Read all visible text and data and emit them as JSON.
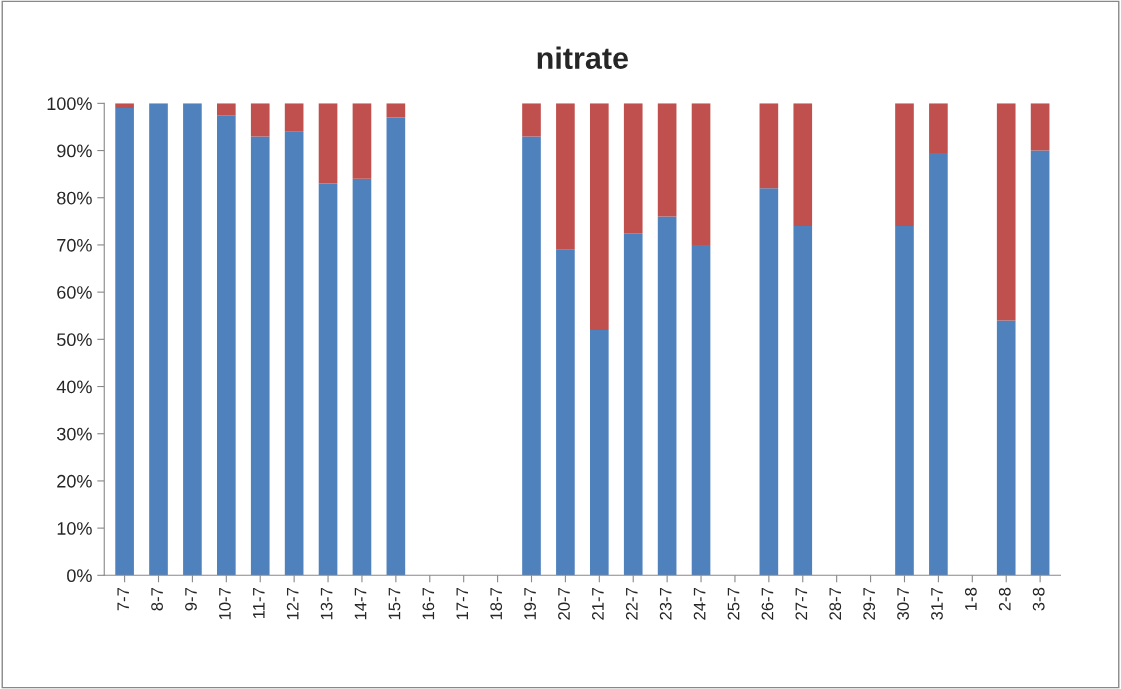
{
  "chart_data": {
    "type": "bar",
    "title": "nitrate",
    "stacked": true,
    "categories": [
      "7-7",
      "8-7",
      "9-7",
      "10-7",
      "11-7",
      "12-7",
      "13-7",
      "14-7",
      "15-7",
      "16-7",
      "17-7",
      "18-7",
      "19-7",
      "20-7",
      "21-7",
      "22-7",
      "23-7",
      "24-7",
      "25-7",
      "26-7",
      "27-7",
      "28-7",
      "29-7",
      "30-7",
      "31-7",
      "1-8",
      "2-8",
      "3-8"
    ],
    "series": [
      {
        "color": "#4f81bd",
        "values": [
          99,
          100,
          100,
          97.5,
          93,
          94,
          83,
          84,
          97,
          null,
          null,
          null,
          93,
          69,
          52,
          72.5,
          76,
          70,
          null,
          82,
          74,
          null,
          null,
          74,
          89.5,
          null,
          54,
          90
        ]
      },
      {
        "color": "#c0504d",
        "values": [
          1,
          null,
          null,
          2.5,
          7,
          6,
          17,
          16,
          3,
          null,
          null,
          null,
          7,
          31,
          48,
          27.5,
          24,
          30,
          null,
          18,
          26,
          null,
          null,
          26,
          10.5,
          null,
          46,
          10
        ]
      }
    ],
    "ylim": [
      0,
      100
    ],
    "yticks": [
      {
        "value": 0,
        "label": "0%"
      },
      {
        "value": 10,
        "label": "10%"
      },
      {
        "value": 20,
        "label": "20%"
      },
      {
        "value": 30,
        "label": "30%"
      },
      {
        "value": 40,
        "label": "40%"
      },
      {
        "value": 50,
        "label": "50%"
      },
      {
        "value": 60,
        "label": "60%"
      },
      {
        "value": 70,
        "label": "70%"
      },
      {
        "value": 80,
        "label": "80%"
      },
      {
        "value": 90,
        "label": "90%"
      },
      {
        "value": 100,
        "label": "100%"
      }
    ],
    "grid": false
  }
}
